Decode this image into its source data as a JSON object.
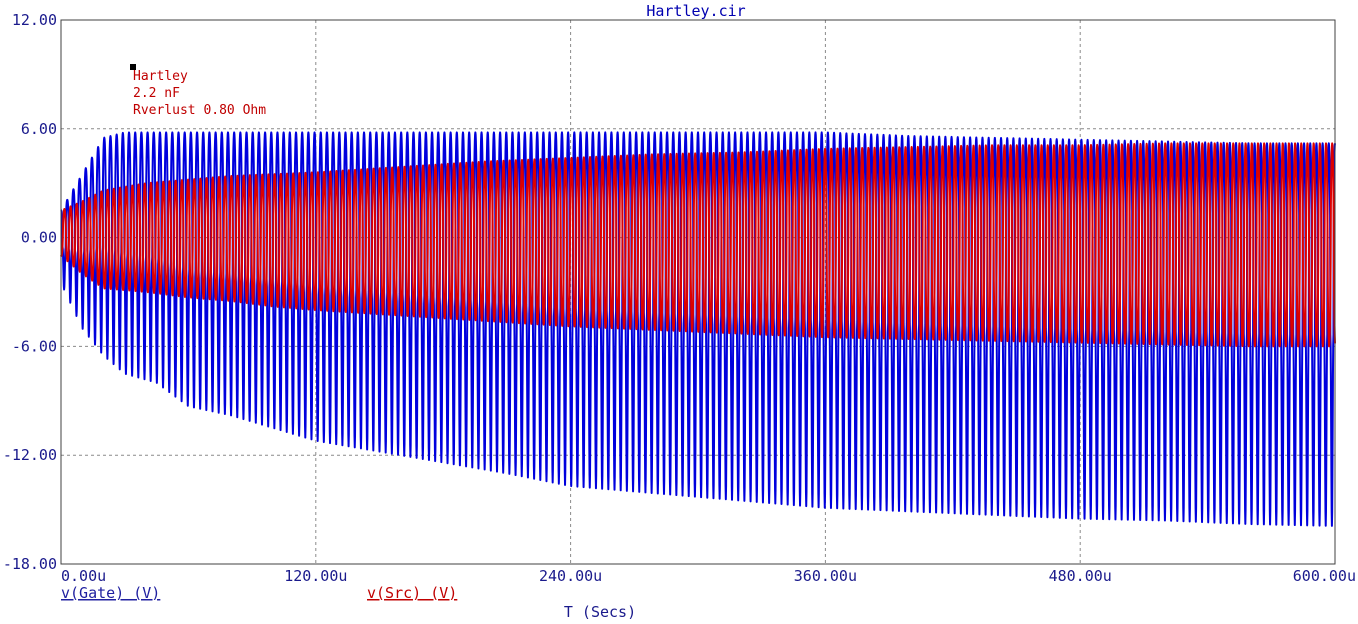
{
  "chart_data": {
    "type": "line",
    "title": "Hartley.cir",
    "xlabel": "T (Secs)",
    "ylabel": "",
    "xlim": [
      0,
      600
    ],
    "ylim": [
      -18,
      12
    ],
    "x_unit": "u",
    "x_ticks": [
      "0.00u",
      "120.00u",
      "240.00u",
      "360.00u",
      "480.00u",
      "600.00u"
    ],
    "y_ticks": [
      "12.00",
      "6.00",
      "0.00",
      "-6.00",
      "-12.00",
      "-18.00"
    ],
    "grid": true,
    "annotations": [
      "Hartley",
      "2.2 nF",
      "Rverlust 0.80 Ohm"
    ],
    "series": [
      {
        "name": "v(Gate) (V)",
        "color": "#0000dd",
        "cycles": 206,
        "envelope_t": [
          0,
          10,
          20,
          30,
          45,
          60,
          80,
          100,
          120,
          150,
          180,
          210,
          240,
          270,
          300,
          330,
          360,
          400,
          440,
          480,
          520,
          560,
          600
        ],
        "envelope_max": [
          1.5,
          3.5,
          5.5,
          5.8,
          5.8,
          5.8,
          5.8,
          5.8,
          5.8,
          5.8,
          5.8,
          5.8,
          5.8,
          5.8,
          5.8,
          5.8,
          5.8,
          5.6,
          5.5,
          5.4,
          5.3,
          5.2,
          5.2
        ],
        "envelope_min": [
          -2.5,
          -5.0,
          -6.5,
          -7.5,
          -8.0,
          -9.3,
          -9.8,
          -10.5,
          -11.2,
          -11.8,
          -12.4,
          -13.0,
          -13.7,
          -14.0,
          -14.3,
          -14.6,
          -14.9,
          -15.1,
          -15.3,
          -15.5,
          -15.6,
          -15.8,
          -15.9
        ]
      },
      {
        "name": "v(Src) (V)",
        "color": "#dd0000",
        "cycles": 206,
        "envelope_t": [
          0,
          10,
          20,
          40,
          60,
          80,
          100,
          120,
          160,
          200,
          240,
          280,
          320,
          360,
          400,
          440,
          480,
          520,
          560,
          600
        ],
        "envelope_max": [
          1.5,
          2.0,
          2.6,
          3.0,
          3.2,
          3.4,
          3.5,
          3.6,
          3.9,
          4.2,
          4.4,
          4.6,
          4.7,
          4.9,
          5.0,
          5.1,
          5.1,
          5.2,
          5.2,
          5.2
        ],
        "envelope_min": [
          -1.0,
          -2.0,
          -2.8,
          -3.0,
          -3.3,
          -3.5,
          -3.8,
          -4.0,
          -4.3,
          -4.6,
          -4.9,
          -5.1,
          -5.3,
          -5.5,
          -5.6,
          -5.7,
          -5.8,
          -5.9,
          -6.0,
          -6.0
        ]
      }
    ]
  }
}
